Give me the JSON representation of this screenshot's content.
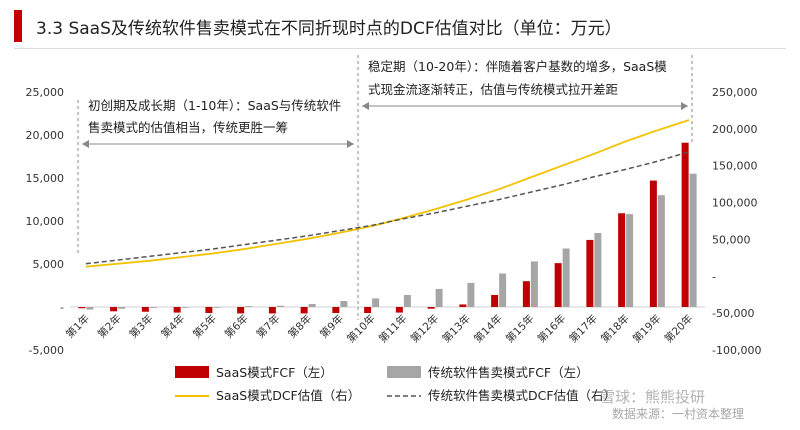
{
  "title": "3.3 SaaS及传统软件售卖模式在不同折现时点的DCF估值对比（单位：万元）",
  "annotations": {
    "phase1": [
      "初创期及成长期（1-10年）：SaaS与传统软件",
      "售卖模式的估值相当，传统更胜一筹"
    ],
    "phase2": [
      "稳定期（10-20年）：伴随着客户基数的增多，SaaS模",
      "式现金流逐渐转正，估值与传统模式拉开差距"
    ]
  },
  "watermark": {
    "text": "雪球：熊熊投研",
    "source": "数据来源：一村资本整理"
  },
  "legend": [
    {
      "label": "SaaS模式FCF（左）",
      "color": "#c00000",
      "kind": "bar"
    },
    {
      "label": "传统软件售卖模式FCF（左）",
      "color": "#a6a6a6",
      "kind": "bar"
    },
    {
      "label": "SaaS模式DCF估值（右）",
      "color": "#f2c200",
      "kind": "line"
    },
    {
      "label": "传统软件售卖模式DCF估值（右）",
      "color": "#555555",
      "kind": "dash"
    }
  ],
  "chart_data": {
    "type": "bar",
    "categories": [
      "第1年",
      "第2年",
      "第3年",
      "第4年",
      "第5年",
      "第6年",
      "第7年",
      "第8年",
      "第9年",
      "第10年",
      "第11年",
      "第12年",
      "第13年",
      "第14年",
      "第15年",
      "第16年",
      "第17年",
      "第18年",
      "第19年",
      "第20年"
    ],
    "y_left": {
      "min": -5000,
      "max": 25000,
      "ticks": [
        -5000,
        0,
        5000,
        10000,
        15000,
        20000,
        25000
      ],
      "tick_labels": [
        "-5,000",
        "-",
        "5,000",
        "10,000",
        "15,000",
        "20,000",
        "25,000"
      ]
    },
    "y_right": {
      "min": -100000,
      "max": 250000,
      "ticks": [
        -100000,
        -50000,
        0,
        50000,
        100000,
        150000,
        200000,
        250000
      ],
      "tick_labels": [
        "-100,000",
        "-50,000",
        "-",
        "50,000",
        "100,000",
        "150,000",
        "200,000",
        "250,000"
      ]
    },
    "series": [
      {
        "name": "SaaS模式FCF（左）",
        "axis": "left",
        "kind": "bar",
        "color": "#c00000",
        "values": [
          -150,
          -500,
          -550,
          -650,
          -700,
          -750,
          -750,
          -750,
          -700,
          -700,
          -650,
          -200,
          300,
          1400,
          3000,
          5100,
          7800,
          10900,
          14700,
          19100
        ]
      },
      {
        "name": "传统软件售卖模式FCF（左）",
        "axis": "left",
        "kind": "bar",
        "color": "#a6a6a6",
        "values": [
          -300,
          -200,
          -100,
          -50,
          0,
          100,
          150,
          350,
          700,
          1000,
          1400,
          2100,
          2800,
          3900,
          5300,
          6800,
          8600,
          10800,
          13000,
          15500
        ]
      },
      {
        "name": "SaaS模式DCF估值（右）",
        "axis": "right",
        "kind": "line",
        "color": "#f2c200",
        "values": [
          13000,
          17000,
          21000,
          26000,
          31000,
          37000,
          44000,
          51000,
          59000,
          68000,
          79000,
          91000,
          104000,
          118000,
          134000,
          150000,
          166000,
          183000,
          198000,
          212000
        ]
      },
      {
        "name": "传统软件售卖模式DCF估值（右）",
        "axis": "right",
        "kind": "dash",
        "color": "#555555",
        "values": [
          17000,
          22000,
          27000,
          32000,
          37000,
          43000,
          49000,
          55000,
          62000,
          69000,
          78000,
          86000,
          95000,
          104000,
          114000,
          124000,
          135000,
          145000,
          156000,
          169000
        ]
      }
    ]
  }
}
